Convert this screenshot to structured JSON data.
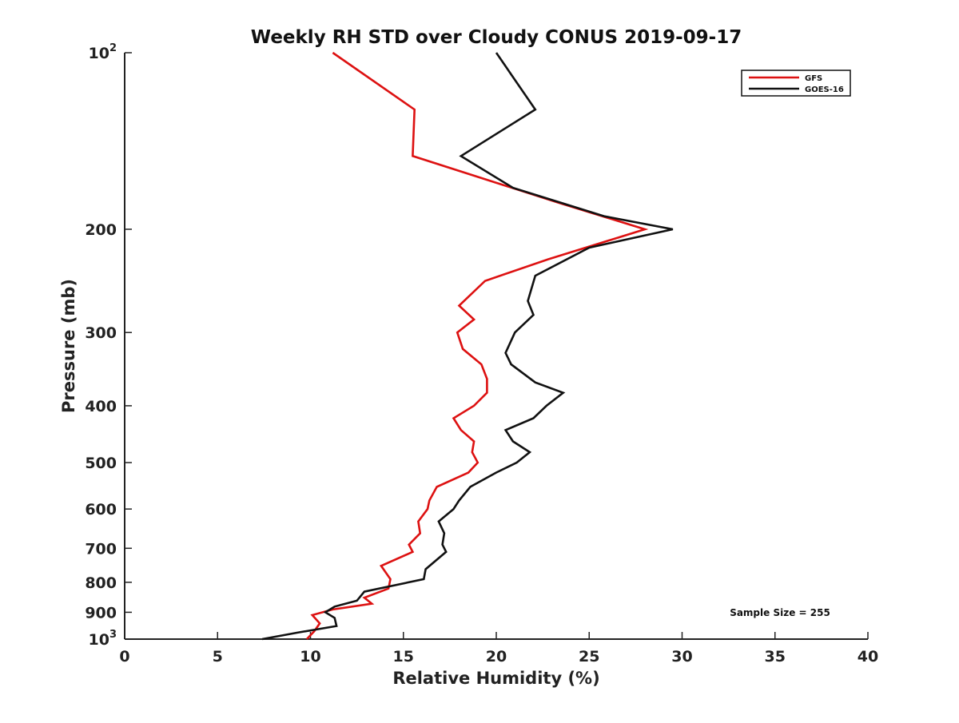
{
  "chart_data": {
    "type": "line",
    "title": "Weekly RH STD over Cloudy CONUS 2019-09-17",
    "xlabel": "Relative Humidity (%)",
    "ylabel": "Pressure (mb)",
    "xlim": [
      0,
      40
    ],
    "ylim": [
      100,
      1000
    ],
    "y_scale": "log",
    "y_reversed": true,
    "grid": false,
    "legend_position": "top-right",
    "x_ticks": [
      0,
      5,
      10,
      15,
      20,
      25,
      30,
      35,
      40
    ],
    "y_ticks": [
      {
        "value": 100,
        "base": "10",
        "exp": "2"
      },
      {
        "value": 200,
        "text": "200"
      },
      {
        "value": 300,
        "text": "300"
      },
      {
        "value": 400,
        "text": "400"
      },
      {
        "value": 500,
        "text": "500"
      },
      {
        "value": 600,
        "text": "600"
      },
      {
        "value": 700,
        "text": "700"
      },
      {
        "value": 800,
        "text": "800"
      },
      {
        "value": 900,
        "text": "900"
      },
      {
        "value": 1000,
        "base": "10",
        "exp": "3"
      }
    ],
    "annotation": "Sample Size = 255",
    "series": [
      {
        "name": "GFS",
        "color": "#dd1111",
        "points": [
          [
            11.2,
            100
          ],
          [
            15.6,
            125
          ],
          [
            15.5,
            150
          ],
          [
            23.3,
            180
          ],
          [
            28.0,
            200
          ],
          [
            22.8,
            225
          ],
          [
            19.4,
            245
          ],
          [
            18.0,
            270
          ],
          [
            18.8,
            285
          ],
          [
            17.9,
            300
          ],
          [
            18.2,
            320
          ],
          [
            19.2,
            340
          ],
          [
            19.5,
            360
          ],
          [
            19.5,
            380
          ],
          [
            18.8,
            400
          ],
          [
            17.7,
            420
          ],
          [
            18.1,
            440
          ],
          [
            18.8,
            460
          ],
          [
            18.7,
            480
          ],
          [
            19.0,
            500
          ],
          [
            18.5,
            520
          ],
          [
            16.8,
            550
          ],
          [
            16.4,
            580
          ],
          [
            16.3,
            600
          ],
          [
            15.8,
            630
          ],
          [
            15.9,
            660
          ],
          [
            15.3,
            690
          ],
          [
            15.5,
            710
          ],
          [
            13.8,
            750
          ],
          [
            14.3,
            790
          ],
          [
            14.2,
            820
          ],
          [
            12.9,
            850
          ],
          [
            13.3,
            870
          ],
          [
            11.2,
            890
          ],
          [
            10.1,
            910
          ],
          [
            10.5,
            940
          ],
          [
            10.2,
            970
          ],
          [
            9.8,
            1000
          ]
        ]
      },
      {
        "name": "GOES-16",
        "color": "#111111",
        "points": [
          [
            20.0,
            100
          ],
          [
            22.1,
            125
          ],
          [
            18.1,
            150
          ],
          [
            20.9,
            170
          ],
          [
            25.8,
            190
          ],
          [
            29.5,
            200
          ],
          [
            25.0,
            215
          ],
          [
            22.1,
            240
          ],
          [
            21.7,
            265
          ],
          [
            22.0,
            280
          ],
          [
            21.0,
            300
          ],
          [
            20.5,
            325
          ],
          [
            20.8,
            340
          ],
          [
            22.1,
            365
          ],
          [
            23.6,
            380
          ],
          [
            22.7,
            400
          ],
          [
            22.0,
            420
          ],
          [
            20.5,
            440
          ],
          [
            20.9,
            460
          ],
          [
            21.8,
            480
          ],
          [
            21.1,
            500
          ],
          [
            20.0,
            520
          ],
          [
            18.6,
            550
          ],
          [
            18.0,
            580
          ],
          [
            17.7,
            600
          ],
          [
            16.9,
            630
          ],
          [
            17.2,
            660
          ],
          [
            17.1,
            690
          ],
          [
            17.3,
            710
          ],
          [
            16.2,
            760
          ],
          [
            16.1,
            790
          ],
          [
            12.9,
            830
          ],
          [
            12.5,
            860
          ],
          [
            11.3,
            880
          ],
          [
            10.8,
            900
          ],
          [
            11.3,
            920
          ],
          [
            11.4,
            950
          ],
          [
            9.3,
            975
          ],
          [
            7.4,
            1000
          ]
        ]
      }
    ]
  }
}
